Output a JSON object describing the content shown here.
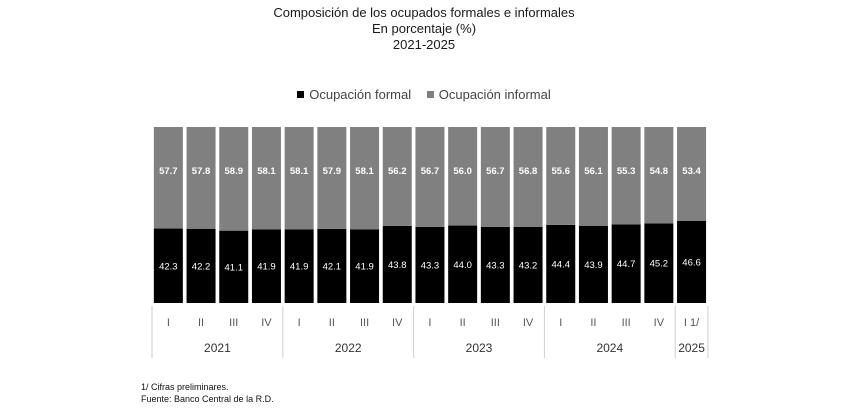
{
  "chart_data": {
    "type": "bar",
    "stacked": true,
    "title": "Composición de los ocupados formales e informales",
    "subtitle": "En porcentaje (%)",
    "period": "2021-2025",
    "legend_position": "top",
    "grid": false,
    "ylim": [
      0,
      100
    ],
    "categories": [
      "I",
      "II",
      "III",
      "IV",
      "I",
      "II",
      "III",
      "IV",
      "I",
      "II",
      "III",
      "IV",
      "I",
      "II",
      "III",
      "IV",
      "I 1/"
    ],
    "years": [
      {
        "label": "2021",
        "quarters": 4
      },
      {
        "label": "2022",
        "quarters": 4
      },
      {
        "label": "2023",
        "quarters": 4
      },
      {
        "label": "2024",
        "quarters": 4
      },
      {
        "label": "2025",
        "quarters": 1
      }
    ],
    "series": [
      {
        "name": "Ocupación formal",
        "color": "#000000",
        "values": [
          42.3,
          42.2,
          41.1,
          41.9,
          41.9,
          42.1,
          41.9,
          43.8,
          43.3,
          44.0,
          43.3,
          43.2,
          44.4,
          43.9,
          44.7,
          45.2,
          46.6
        ]
      },
      {
        "name": "Ocupación informal",
        "color": "#808080",
        "values": [
          57.7,
          57.8,
          58.9,
          58.1,
          58.1,
          57.9,
          58.1,
          56.2,
          56.7,
          56.0,
          56.7,
          56.8,
          55.6,
          56.1,
          55.3,
          54.8,
          53.4
        ]
      }
    ]
  },
  "notes": {
    "footnote": "1/ Cifras preliminares.",
    "source": "Fuente: Banco Central de la R.D."
  }
}
